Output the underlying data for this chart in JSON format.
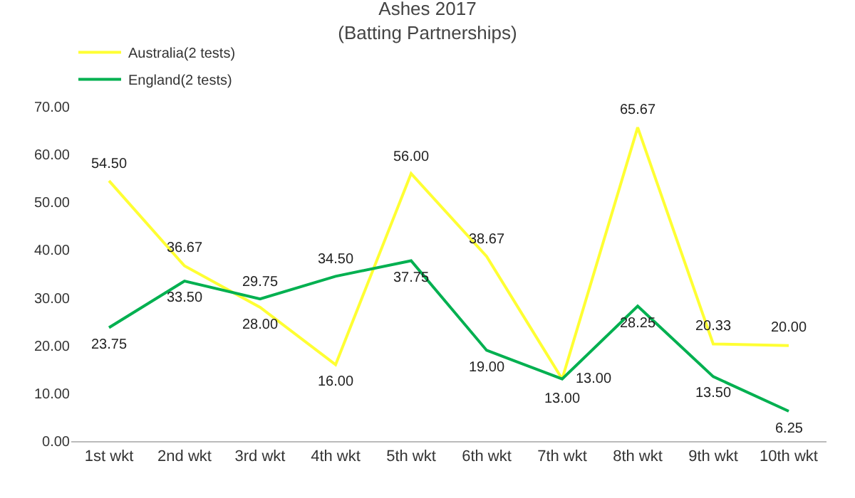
{
  "chart_data": {
    "type": "line",
    "title": "Ashes 2017\n(Batting Partnerships)",
    "categories": [
      "1st wkt",
      "2nd wkt",
      "3rd wkt",
      "4th wkt",
      "5th wkt",
      "6th wkt",
      "7th wkt",
      "8th wkt",
      "9th wkt",
      "10th wkt"
    ],
    "series": [
      {
        "name": "Australia(2 tests)",
        "color": "#ffff33",
        "values": [
          54.5,
          36.67,
          28,
          16,
          56,
          38.67,
          13,
          65.67,
          20.33,
          20
        ],
        "value_labels": [
          "54.50",
          "36.67",
          "28.00",
          "16.00",
          "56.00",
          "38.67",
          "13.00",
          "65.67",
          "20.33",
          "20.00"
        ]
      },
      {
        "name": "England(2 tests)",
        "color": "#00b050",
        "values": [
          23.75,
          33.5,
          29.75,
          34.5,
          37.75,
          19,
          13,
          28.25,
          13.5,
          6.25
        ],
        "value_labels": [
          "23.75",
          "33.50",
          "29.75",
          "34.50",
          "37.75",
          "19.00",
          "13.00",
          "28.25",
          "13.50",
          "6.25"
        ]
      }
    ],
    "ylim": [
      0,
      70
    ],
    "yticks": [
      {
        "value": 0,
        "label": "0.00"
      },
      {
        "value": 10,
        "label": "10.00"
      },
      {
        "value": 20,
        "label": "20.00"
      },
      {
        "value": 30,
        "label": "30.00"
      },
      {
        "value": 40,
        "label": "40.00"
      },
      {
        "value": 50,
        "label": "50.00"
      },
      {
        "value": 60,
        "label": "60.00"
      },
      {
        "value": 70,
        "label": "70.00"
      }
    ],
    "grid": false,
    "legend": "top left",
    "marker": "none",
    "line_style": "solid"
  }
}
